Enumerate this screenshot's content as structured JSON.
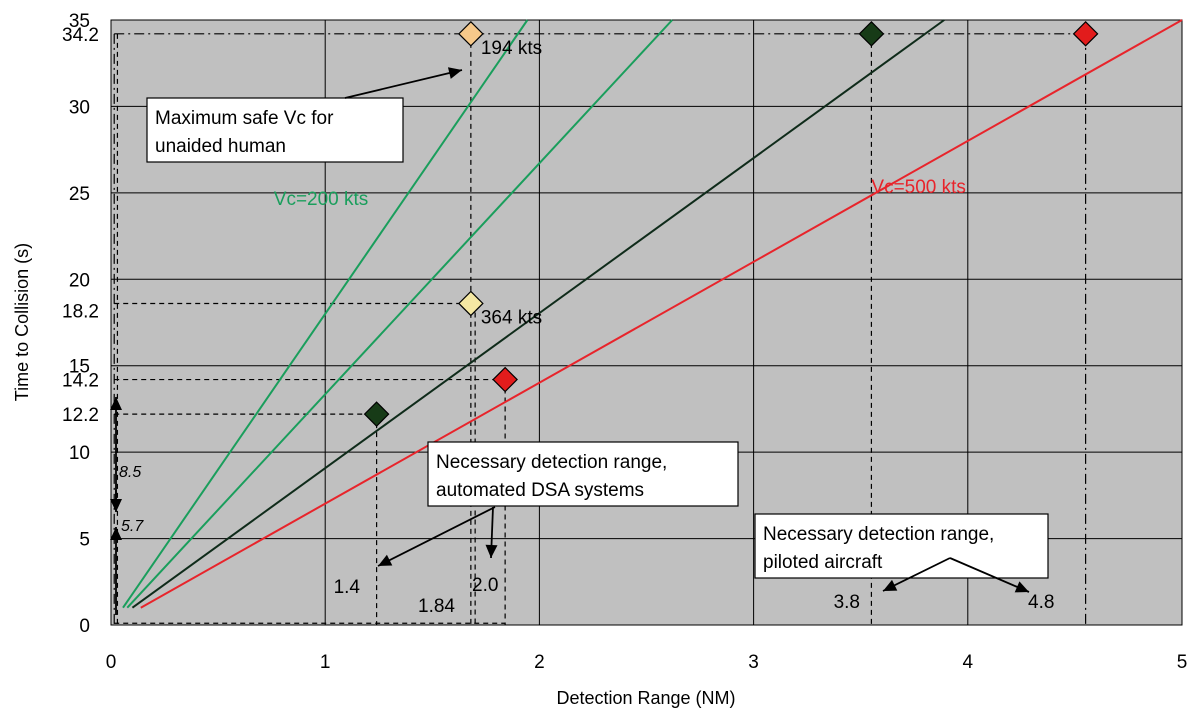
{
  "colors": {
    "plot_bg": "#c0c0c0",
    "grid": "#000000",
    "green": "#1a9e5c",
    "dark": "#0f2b1a",
    "red": "#e8242b",
    "marker_dark": "#173b17",
    "marker_red": "#e21c1c",
    "marker_orange": "#f7c98a",
    "marker_yellow": "#f5e8a3"
  },
  "chart_data": {
    "type": "line",
    "xlabel": "Detection Range (NM)",
    "ylabel": "Time to Collision (s)",
    "xlim": [
      0,
      5
    ],
    "ylim": [
      0,
      35
    ],
    "x_ticks": [
      0,
      1,
      2,
      3,
      4,
      5
    ],
    "y_ticks": [
      0,
      5,
      10,
      15,
      20,
      25,
      30,
      35
    ],
    "extra_y_ticks": [
      12.2,
      14.2,
      18.2,
      34.2
    ],
    "grid": true,
    "series": [
      {
        "name": "Vc=200 kts",
        "color_key": "green",
        "x_start": 0.056,
        "x_end": 1.944
      },
      {
        "color_key": "green",
        "x_start": 0.076,
        "x_end": 2.62
      },
      {
        "color_key": "dark",
        "x_start": 0.1,
        "x_end": 3.89
      },
      {
        "name": "Vc=500 kts",
        "color_key": "red",
        "x_start": 0.139,
        "x_end": 5.0
      }
    ],
    "points": [
      {
        "x": 1.68,
        "y": 34.2,
        "fill_key": "marker_orange",
        "label": "194 kts"
      },
      {
        "x": 3.55,
        "y": 34.2,
        "fill_key": "marker_dark"
      },
      {
        "x": 4.55,
        "y": 34.2,
        "fill_key": "marker_red"
      },
      {
        "x": 1.68,
        "y": 18.6,
        "fill_key": "marker_yellow",
        "label": "364 kts"
      },
      {
        "x": 1.84,
        "y": 14.2,
        "fill_key": "marker_red"
      },
      {
        "x": 1.24,
        "y": 12.2,
        "fill_key": "marker_dark"
      }
    ],
    "annotations": {
      "box1": [
        "Maximum safe Vc for",
        "unaided human"
      ],
      "box2": [
        "Necessary detection range,",
        "automated DSA systems"
      ],
      "box3": [
        "Necessary detection range,",
        "piloted aircraft"
      ],
      "dist_labels": [
        "1.4",
        "1.84",
        "2.0",
        "3.8",
        "4.8"
      ],
      "time_labels": [
        "8.5",
        "5.7"
      ]
    }
  }
}
